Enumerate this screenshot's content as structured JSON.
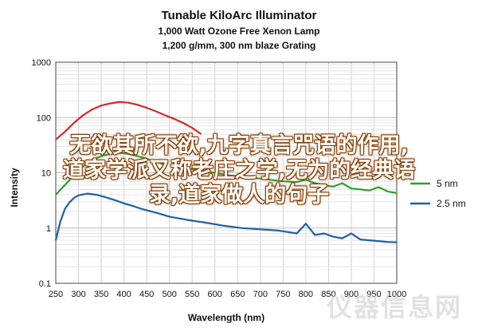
{
  "chart_data": {
    "type": "line",
    "title": "Tunable KiloArc Illuminator",
    "subtitle": "1,000 Watt Ozone Free Xenon Lamp",
    "subtitle2": "1,200 g/mm, 300 nm blaze Grating",
    "xlabel": "Wavelength (nm)",
    "ylabel": "Intensity",
    "xlim": [
      250,
      1000
    ],
    "ylim": [
      0.1,
      1000
    ],
    "yscale": "log",
    "x_ticks": [
      "250",
      "300",
      "350",
      "400",
      "450",
      "500",
      "550",
      "600",
      "650",
      "700",
      "750",
      "800",
      "850",
      "900",
      "950",
      "1000"
    ],
    "y_ticks": [
      "0.1",
      "1",
      "10",
      "100",
      "1000"
    ],
    "grid": true,
    "legend": {
      "placement": "right"
    },
    "series": [
      {
        "name": "",
        "color": "#d62728",
        "x": [
          250,
          270,
          290,
          310,
          330,
          350,
          370,
          390,
          410,
          430,
          450,
          470,
          490,
          510,
          530,
          550,
          570
        ],
        "y": [
          40,
          55,
          80,
          110,
          140,
          165,
          180,
          190,
          185,
          170,
          150,
          130,
          110,
          95,
          80,
          65,
          50
        ]
      },
      {
        "name": "",
        "color": "#2ca02c",
        "x": [
          250,
          270,
          290,
          310,
          330,
          350,
          370,
          390,
          410,
          430,
          450,
          470,
          490
        ],
        "y": [
          4,
          6,
          9,
          13,
          17,
          20,
          22,
          23,
          22,
          20,
          18,
          16,
          14
        ]
      },
      {
        "name": "5 nm",
        "color": "#2ca02c",
        "x": [
          510,
          540,
          570,
          600,
          630,
          660,
          690,
          720,
          750,
          780,
          800,
          820,
          840,
          860,
          880,
          900,
          920,
          940,
          960,
          980,
          1000
        ],
        "y": [
          13,
          12,
          11,
          10,
          9,
          8.5,
          8,
          7.5,
          7,
          6.8,
          7.5,
          6.5,
          6,
          5.6,
          6.5,
          5.2,
          5,
          4.8,
          5.5,
          4.6,
          4.3
        ]
      },
      {
        "name": "2.5 nm",
        "color": "#1f5fa8",
        "x": [
          250,
          260,
          270,
          280,
          290,
          300,
          320,
          340,
          360,
          380,
          400,
          420,
          440,
          460,
          480,
          500,
          540,
          580,
          620,
          660,
          700,
          740,
          780,
          800,
          820,
          840,
          860,
          880,
          900,
          920,
          940,
          960,
          980,
          1000
        ],
        "y": [
          0.6,
          1.3,
          2.2,
          2.9,
          3.5,
          3.9,
          4.2,
          4.0,
          3.6,
          3.2,
          2.8,
          2.5,
          2.2,
          2.0,
          1.8,
          1.6,
          1.4,
          1.25,
          1.1,
          1.0,
          0.95,
          0.9,
          0.8,
          1.2,
          0.75,
          0.8,
          0.7,
          0.65,
          0.8,
          0.62,
          0.6,
          0.58,
          0.56,
          0.55
        ]
      }
    ]
  },
  "overlay": {
    "line1": "无欲其所不欲,九字真言咒语的作用,",
    "line2": "道家学派又称老庄之学,无为的经典语",
    "line3": "录,道家做人的句子"
  },
  "watermark": "仪器信息网"
}
